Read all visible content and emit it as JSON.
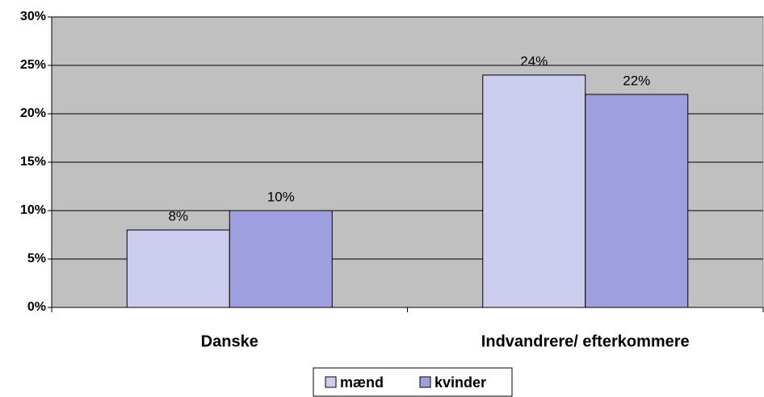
{
  "chart_data": {
    "type": "bar",
    "categories": [
      "Danske",
      "Indvandrere/ efterkommere"
    ],
    "series": [
      {
        "name": "mænd",
        "color": "#ccccee",
        "values": [
          8,
          24
        ],
        "value_labels": [
          "8%",
          "24%"
        ]
      },
      {
        "name": "kvinder",
        "color": "#9f9fdf",
        "values": [
          10,
          22
        ],
        "value_labels": [
          "10%",
          "22%"
        ]
      }
    ],
    "ylim": [
      0,
      30
    ],
    "yticks": [
      {
        "value": 0,
        "label": "0%"
      },
      {
        "value": 5,
        "label": "5%"
      },
      {
        "value": 10,
        "label": "10%"
      },
      {
        "value": 15,
        "label": "15%"
      },
      {
        "value": 20,
        "label": "20%"
      },
      {
        "value": 25,
        "label": "25%"
      },
      {
        "value": 30,
        "label": "30%"
      }
    ],
    "grid": true,
    "plot_background": "#c0c0c0",
    "legend": "bottom"
  }
}
